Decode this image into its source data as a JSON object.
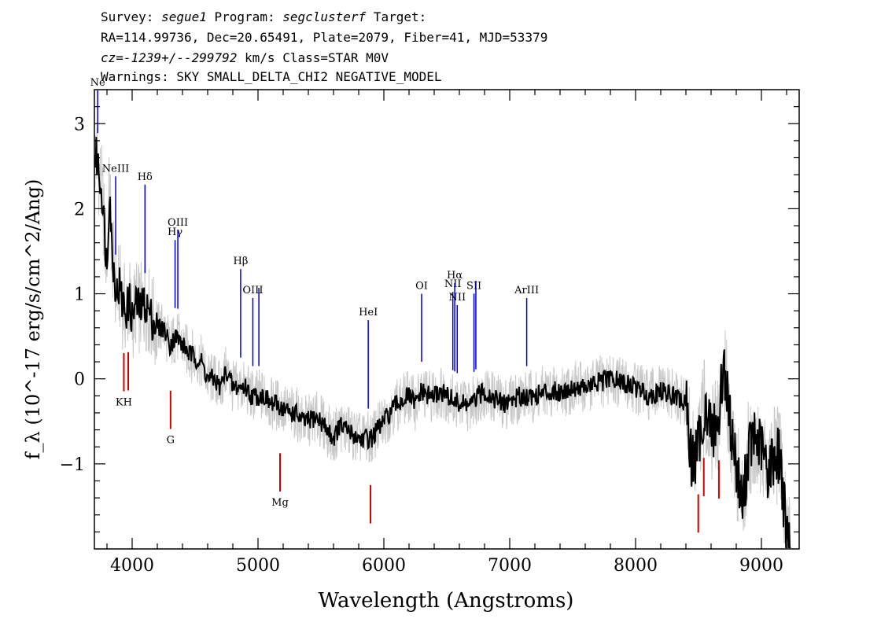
{
  "header": {
    "line1": {
      "survey_label": "Survey:",
      "survey": "segue1",
      "program_label": "Program:",
      "program": "segclusterf",
      "target_label": "Target:"
    },
    "line2": "RA=114.99736, Dec=20.65491, Plate=2079, Fiber=41, MJD=53379",
    "line3": {
      "cz": "cz=-1239+/--299792",
      "rest": "km/s Class=STAR M0V"
    },
    "line4": "Warnings: SKY SMALL_DELTA_CHI2 NEGATIVE_MODEL"
  },
  "chart_data": {
    "type": "line",
    "xlabel": "Wavelength (Angstroms)",
    "ylabel": "f_λ (10^-17 erg/s/cm^2/Ang)",
    "xlim": [
      3700,
      9300
    ],
    "ylim": [
      -2.0,
      3.4
    ],
    "x_ticks": [
      4000,
      5000,
      6000,
      7000,
      8000,
      9000
    ],
    "y_ticks": [
      -1,
      0,
      1,
      2,
      3
    ],
    "grid": false,
    "colors": {
      "flux": "#000000",
      "error": "#c8c8c8",
      "emission": "#0000cc",
      "absorption": "#cc0000"
    },
    "series": [
      {
        "x": [
          3720,
          3760,
          3800,
          3820,
          3840,
          3860,
          3880,
          3900,
          3920,
          3950,
          3980,
          4000,
          4030,
          4060,
          4100,
          4130,
          4160,
          4200,
          4250,
          4300,
          4350,
          4400,
          4450,
          4500,
          4550,
          4600,
          4650,
          4700,
          4750,
          4800,
          4850,
          4900,
          4950,
          5000,
          5050,
          5100,
          5150,
          5200,
          5250,
          5300,
          5350,
          5400,
          5450,
          5500,
          5550,
          5600,
          5650,
          5700,
          5750,
          5800,
          5850,
          5900,
          5950,
          6000,
          6050,
          6100,
          6150,
          6200,
          6250,
          6300,
          6350,
          6400,
          6450,
          6500,
          6550,
          6600,
          6650,
          6700,
          6750,
          6800,
          6850,
          6900,
          6950,
          7000,
          7100,
          7200,
          7300,
          7400,
          7500,
          7600,
          7700,
          7800,
          7900,
          8000,
          8100,
          8200,
          8300,
          8400,
          8450,
          8500,
          8550,
          8600,
          8650,
          8700,
          8750,
          8800,
          8850,
          8900,
          8950,
          9000,
          9050,
          9100,
          9150,
          9200
        ],
        "y": [
          2.6,
          2.2,
          1.3,
          2.3,
          1.5,
          1.2,
          1.0,
          1.1,
          0.9,
          0.8,
          0.9,
          0.7,
          0.9,
          0.8,
          0.9,
          0.8,
          0.7,
          0.6,
          0.6,
          0.4,
          0.5,
          0.4,
          0.3,
          0.25,
          0.2,
          0.0,
          0.0,
          -0.1,
          0.1,
          -0.1,
          -0.1,
          -0.1,
          -0.2,
          -0.2,
          -0.2,
          -0.3,
          -0.3,
          -0.35,
          -0.4,
          -0.4,
          -0.5,
          -0.5,
          -0.45,
          -0.5,
          -0.6,
          -0.7,
          -0.55,
          -0.6,
          -0.65,
          -0.7,
          -0.7,
          -0.7,
          -0.6,
          -0.5,
          -0.4,
          -0.3,
          -0.25,
          -0.2,
          -0.3,
          -0.15,
          -0.2,
          -0.2,
          -0.15,
          -0.2,
          -0.25,
          -0.3,
          -0.3,
          -0.3,
          -0.2,
          -0.15,
          -0.2,
          -0.25,
          -0.3,
          -0.25,
          -0.2,
          -0.2,
          -0.15,
          -0.15,
          -0.1,
          -0.1,
          -0.05,
          0.0,
          -0.05,
          -0.1,
          -0.2,
          -0.15,
          -0.2,
          -0.3,
          -1.0,
          -0.8,
          -0.3,
          -0.6,
          -0.6,
          0.2,
          -0.5,
          -1.0,
          -1.5,
          -0.8,
          -0.7,
          -0.8,
          -1.1,
          -0.9,
          -0.9,
          -1.9
        ]
      }
    ],
    "emission_lines": [
      {
        "label": "Ne",
        "x": 3726
      },
      {
        "label": "NeIII",
        "x": 3869
      },
      {
        "label": "Hδ",
        "x": 4102
      },
      {
        "label": "Hγ",
        "x": 4341
      },
      {
        "label": "OIII",
        "x": 4363
      },
      {
        "label": "Hβ",
        "x": 4862
      },
      {
        "label": "OIII",
        "x": 4959
      },
      {
        "label": "",
        "x": 5007
      },
      {
        "label": "HeI",
        "x": 5876
      },
      {
        "label": "OI",
        "x": 6300
      },
      {
        "label": "NII",
        "x": 6548
      },
      {
        "label": "Hα",
        "x": 6563
      },
      {
        "label": "NII",
        "x": 6583
      },
      {
        "label": "SII",
        "x": 6716
      },
      {
        "label": "",
        "x": 6731
      },
      {
        "label": "ArIII",
        "x": 7135
      }
    ],
    "absorption_lines": [
      {
        "label": "KH",
        "x": 3934
      },
      {
        "label": "",
        "x": 3969
      },
      {
        "label": "G",
        "x": 4305
      },
      {
        "label": "Mg",
        "x": 5175
      },
      {
        "label": "",
        "x": 5894
      },
      {
        "label": "",
        "x": 8498
      },
      {
        "label": "",
        "x": 8542
      },
      {
        "label": "",
        "x": 8662
      }
    ]
  }
}
